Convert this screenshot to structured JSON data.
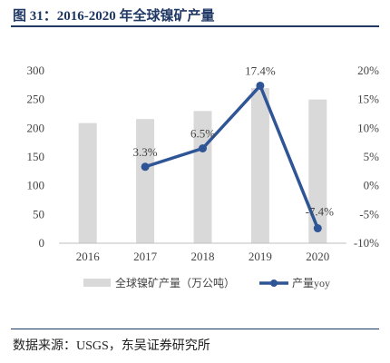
{
  "figure": {
    "title": "图 31：2016-2020 年全球镍矿产量",
    "source": "数据来源：USGS，东吴证券研究所"
  },
  "chart_data": {
    "type": "bar",
    "categories": [
      "2016",
      "2017",
      "2018",
      "2019",
      "2020"
    ],
    "series": [
      {
        "name": "全球镍矿产量（万公吨）",
        "type": "bar",
        "axis": "left",
        "values": [
          209,
          216,
          230,
          270,
          250
        ]
      },
      {
        "name": "产量yoy",
        "type": "line",
        "axis": "right",
        "values": [
          null,
          3.3,
          6.5,
          17.4,
          -7.4
        ],
        "labels": [
          "",
          "3.3%",
          "6.5%",
          "17.4%",
          "-7.4%"
        ]
      }
    ],
    "y_left": {
      "min": 0,
      "max": 300,
      "ticks": [
        "0",
        "50",
        "100",
        "150",
        "200",
        "250",
        "300"
      ]
    },
    "y_right": {
      "min": -10,
      "max": 20,
      "ticks": [
        "-10%",
        "-5%",
        "0%",
        "5%",
        "10%",
        "15%",
        "20%"
      ]
    },
    "grid": false,
    "legend": "bottom",
    "colors": {
      "bar": "#d9d9d9",
      "line": "#2f5597"
    }
  }
}
